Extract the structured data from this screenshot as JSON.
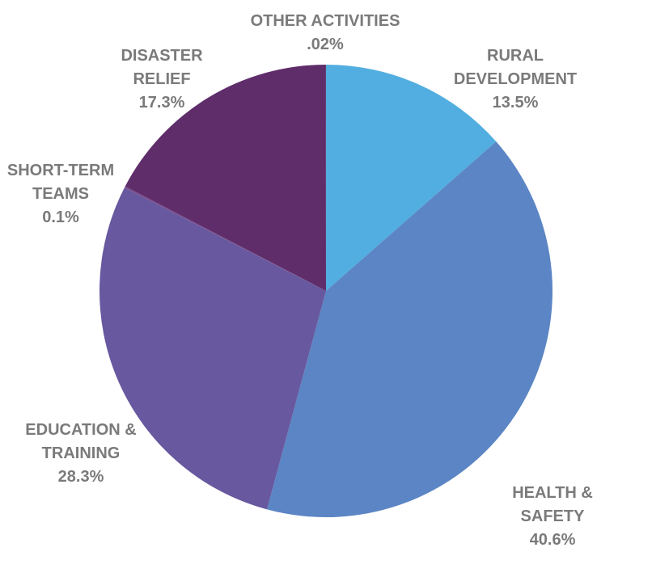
{
  "chart_data": {
    "type": "pie",
    "categories": [
      "RURAL\nDEVELOPMENT",
      "HEALTH &\nSAFETY",
      "EDUCATION &\nTRAINING",
      "SHORT-TERM\nTEAMS",
      "DISASTER\nRELIEF",
      "OTHER ACTIVITIES"
    ],
    "values": [
      13.5,
      40.6,
      28.3,
      0.1,
      17.3,
      0.02
    ],
    "value_labels": [
      "13.5%",
      "40.6%",
      "28.3%",
      "0.1%",
      "17.3%",
      ".02%"
    ],
    "colors": [
      "#52aee0",
      "#5b85c4",
      "#67589f",
      "#7a4a8a",
      "#5e2d6a",
      "#4a1a4a"
    ]
  }
}
